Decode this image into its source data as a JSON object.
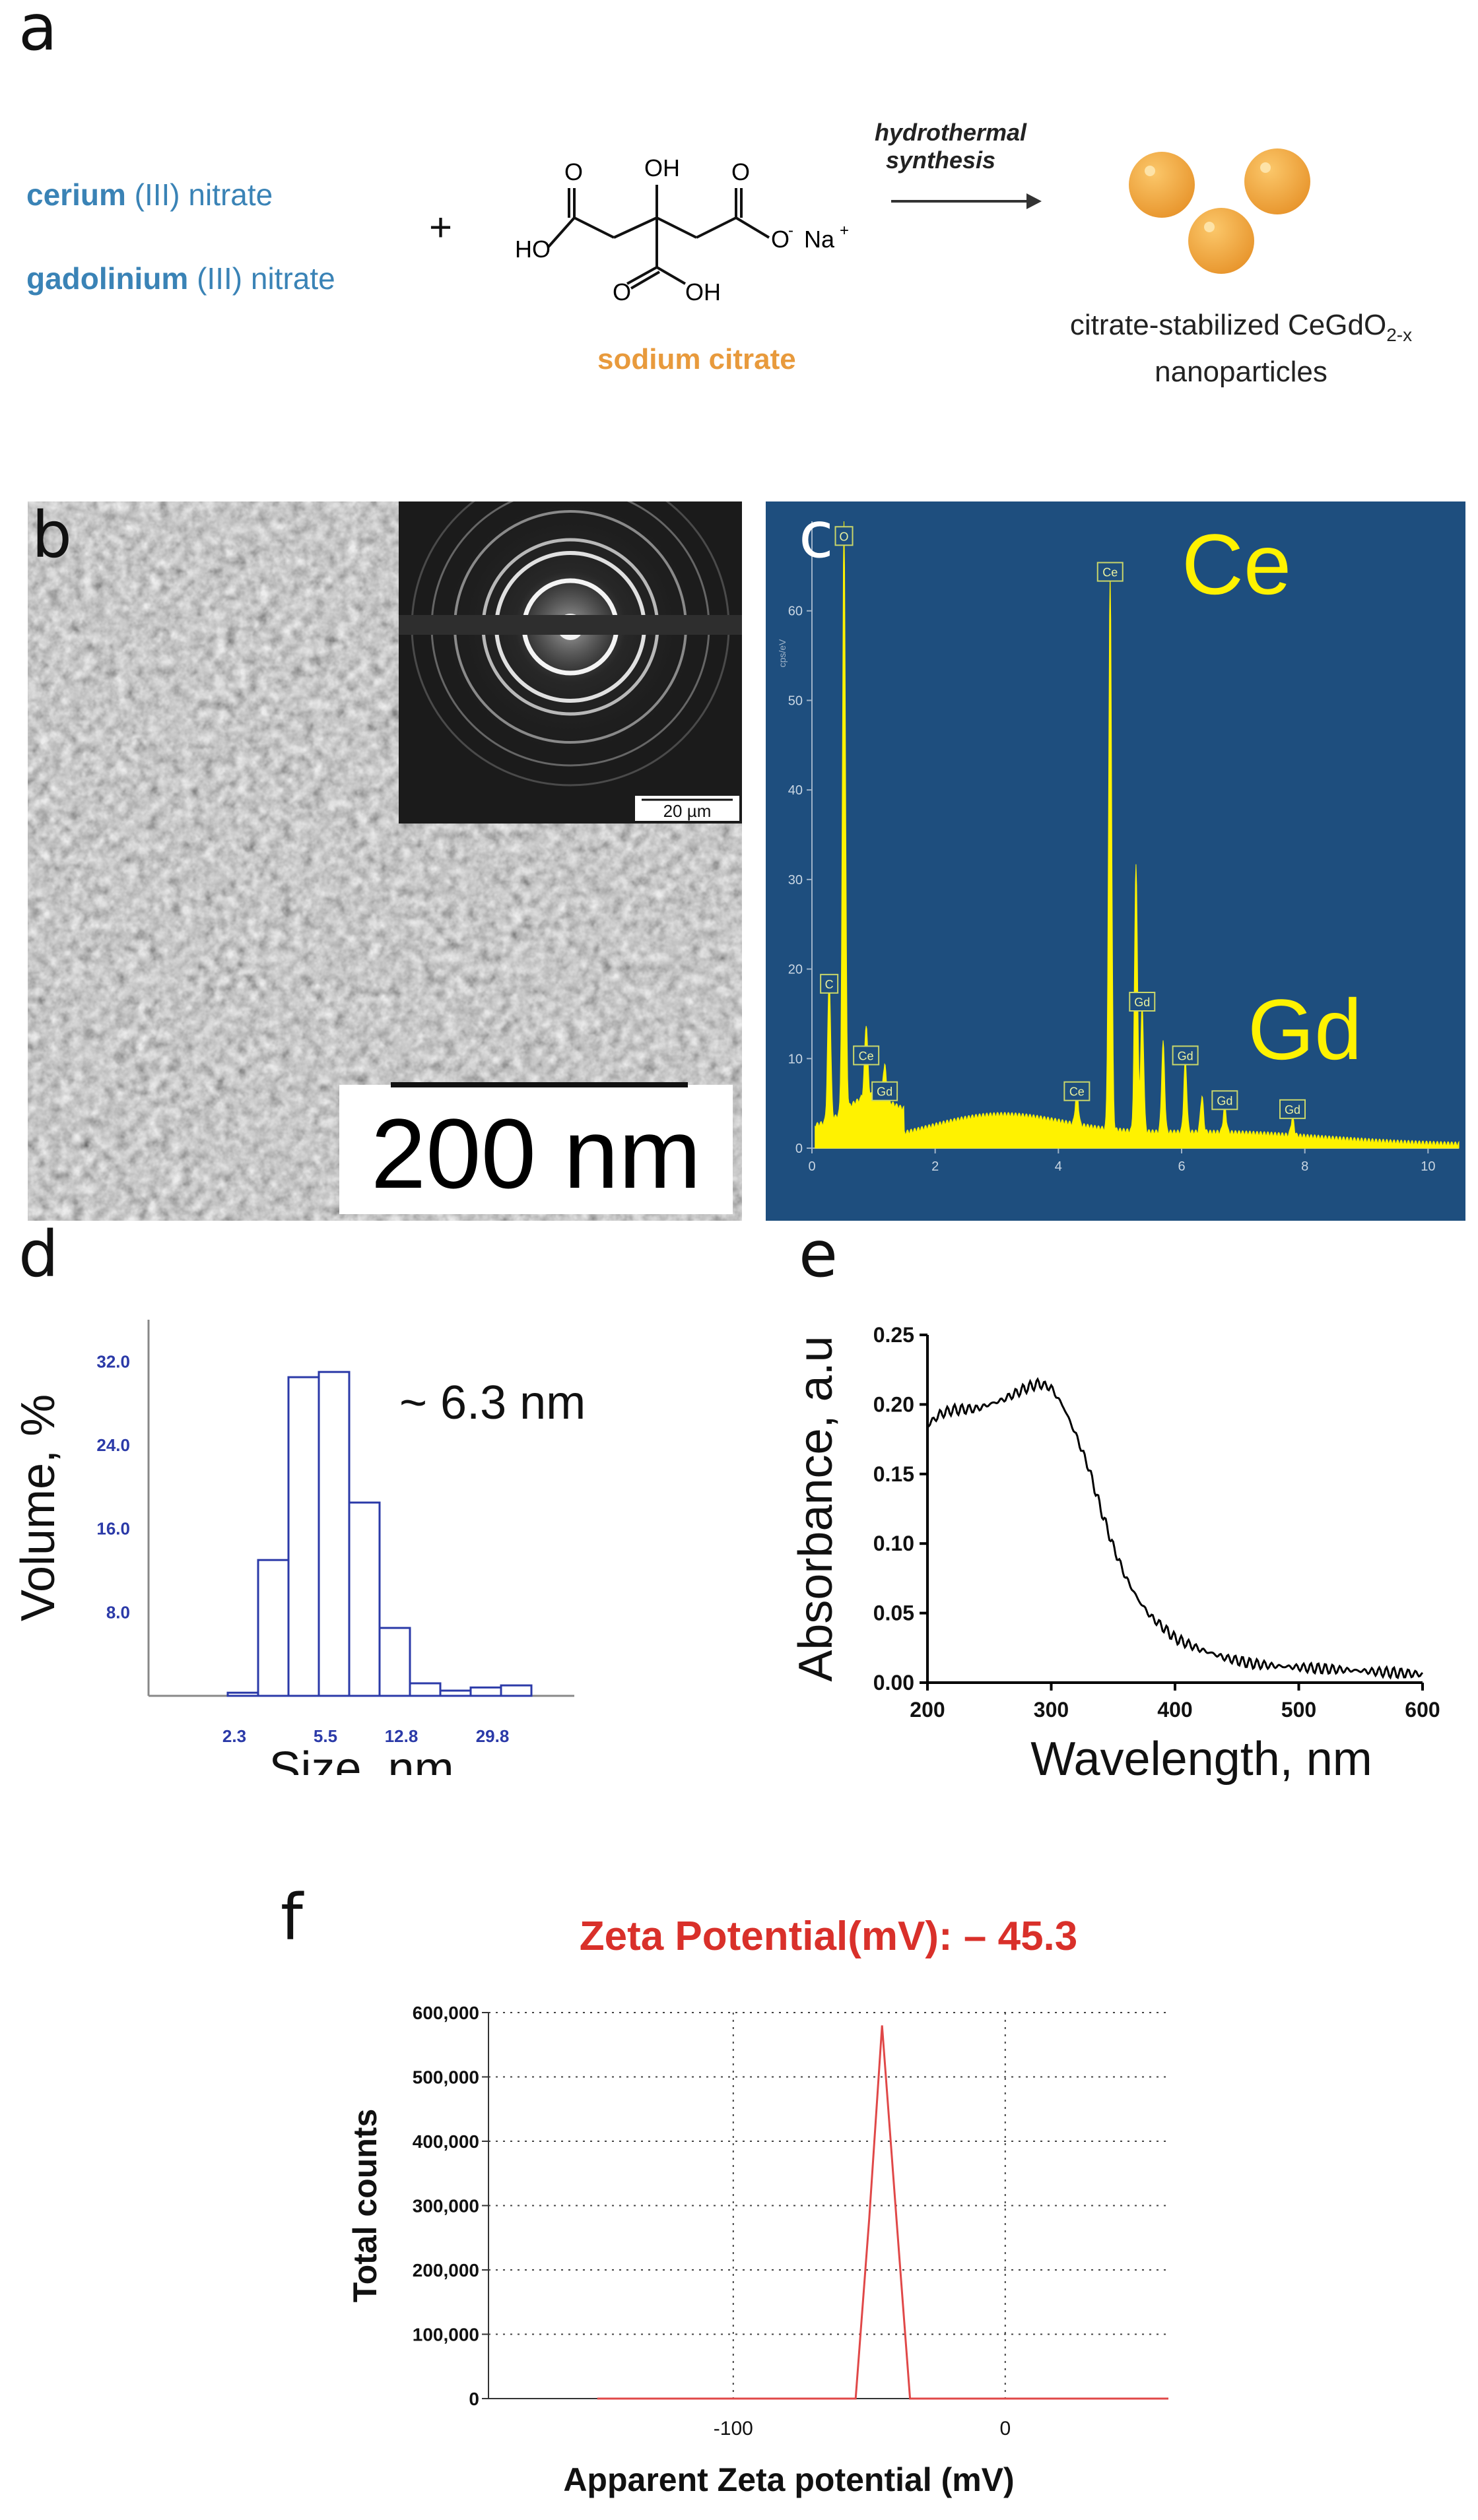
{
  "panel_a": {
    "letter": "a",
    "reagent1_name": "cerium",
    "reagent1_suffix": "(III) nitrate",
    "reagent2_name": "gadolinium",
    "reagent2_suffix": "(III) nitrate",
    "plus": "+",
    "citrate_label": "sodium citrate",
    "reaction_line1": "hydrothermal",
    "reaction_line2": "synthesis",
    "product_line1": "citrate-stabilized CeGdO",
    "product_sub": "2-x",
    "product_line2": "nanoparticles",
    "chem_oh": "OH",
    "chem_o": "O",
    "chem_ho": "HO",
    "chem_ominus": "O",
    "chem_minus": "-",
    "chem_na": "Na",
    "chem_plus": "+",
    "chem_o2": "O",
    "chem_oh2": "OH",
    "chem_o3": "O",
    "colors": {
      "blue": "#3a83b6",
      "orange": "#e89a3c",
      "particle": "#f1a93a"
    }
  },
  "panel_b": {
    "letter": "b",
    "scale_main": "200 nm",
    "scale_inset": "20 µm"
  },
  "panel_c": {
    "letter": "c",
    "big_label_ce": "Ce",
    "big_label_gd": "Gd",
    "y_axis_label": "cps/eV",
    "bg_color": "#1e4e7e"
  },
  "panel_d": {
    "letter": "d",
    "annotation": "~ 6.3 nm"
  },
  "panel_e": {
    "letter": "e"
  },
  "panel_f": {
    "letter": "f",
    "title": "Zeta Potential(mV): – 45.3"
  },
  "chart_data": [
    {
      "id": "c",
      "type": "line",
      "title": "",
      "xlabel": "",
      "ylabel": "cps/eV",
      "xlim": [
        0,
        10.5
      ],
      "ylim": [
        0,
        70
      ],
      "xticks": [
        0,
        2,
        4,
        6,
        8,
        10
      ],
      "yticks": [
        0,
        10,
        20,
        30,
        40,
        50,
        60
      ],
      "peaks": [
        {
          "label": "C",
          "energy": 0.28,
          "height": 16
        },
        {
          "label": "O",
          "energy": 0.52,
          "height": 66
        },
        {
          "label": "Ce",
          "energy": 0.88,
          "height": 8
        },
        {
          "label": "Gd",
          "energy": 1.18,
          "height": 4
        },
        {
          "label": "Ce",
          "energy": 4.3,
          "height": 4
        },
        {
          "label": "Ce",
          "energy": 4.84,
          "height": 62
        },
        {
          "label": "Gd",
          "energy": 5.36,
          "height": 14
        },
        {
          "label": "Gd",
          "energy": 6.06,
          "height": 8
        },
        {
          "label": "Gd",
          "energy": 6.7,
          "height": 3
        },
        {
          "label": "Gd",
          "energy": 7.8,
          "height": 2
        }
      ],
      "extra_peaks": [
        {
          "energy": 5.26,
          "height": 30
        },
        {
          "energy": 5.7,
          "height": 10
        },
        {
          "energy": 6.33,
          "height": 4
        }
      ]
    },
    {
      "id": "d",
      "type": "bar",
      "title": "",
      "xlabel": "Size, nm",
      "ylabel": "Volume, %",
      "ylim": [
        0,
        36
      ],
      "yticks": [
        "8.0",
        "16.0",
        "24.0",
        "32.0"
      ],
      "xticks": [
        "2.3",
        "5.5",
        "12.8",
        "29.8"
      ],
      "values": [
        0.3,
        13,
        30.5,
        31,
        18.5,
        6.5,
        1.2,
        0.5,
        0.8,
        1.0
      ]
    },
    {
      "id": "e",
      "type": "line",
      "title": "",
      "xlabel": "Wavelength, nm",
      "ylabel": "Absorbance, a.u",
      "xlim": [
        200,
        600
      ],
      "ylim": [
        0,
        0.25
      ],
      "xticks": [
        "200",
        "300",
        "400",
        "500",
        "600"
      ],
      "yticks": [
        "0.00",
        "0.05",
        "0.10",
        "0.15",
        "0.20",
        "0.25"
      ],
      "x": [
        200,
        210,
        220,
        240,
        260,
        280,
        290,
        300,
        310,
        320,
        330,
        340,
        350,
        360,
        370,
        380,
        400,
        420,
        440,
        460,
        480,
        500,
        520,
        540,
        560,
        580,
        600
      ],
      "y": [
        0.185,
        0.193,
        0.196,
        0.197,
        0.203,
        0.212,
        0.215,
        0.212,
        0.198,
        0.178,
        0.155,
        0.125,
        0.098,
        0.076,
        0.06,
        0.048,
        0.032,
        0.024,
        0.018,
        0.014,
        0.012,
        0.011,
        0.01,
        0.009,
        0.008,
        0.007,
        0.006
      ]
    },
    {
      "id": "f",
      "type": "line",
      "title": "Zeta Potential(mV): – 45.3",
      "xlabel": "Apparent Zeta potential (mV)",
      "ylabel": "Total counts",
      "xlim": [
        -190,
        60
      ],
      "ylim": [
        0,
        600000
      ],
      "xticks": [
        "-100",
        "0"
      ],
      "yticks": [
        "0",
        "100,000",
        "200,000",
        "300,000",
        "400,000",
        "500,000",
        "600,000"
      ],
      "x": [
        -150,
        -55,
        -50,
        -45.3,
        -40,
        -35,
        60
      ],
      "y": [
        0,
        0,
        280000,
        580000,
        280000,
        0,
        0
      ]
    }
  ]
}
